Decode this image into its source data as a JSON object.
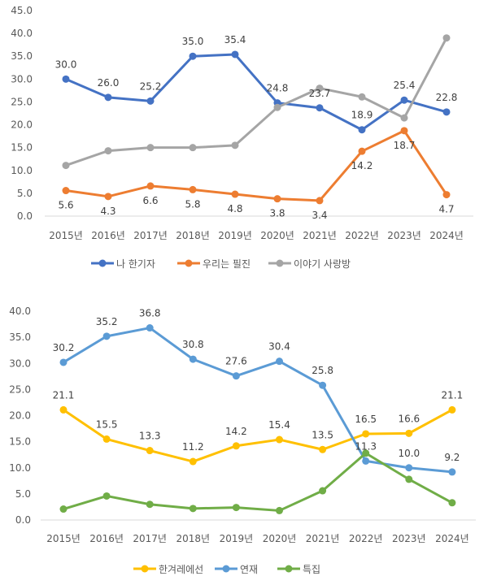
{
  "chart_data": [
    {
      "type": "line",
      "title": "",
      "categories": [
        "2015년",
        "2016년",
        "2017년",
        "2018년",
        "2019년",
        "2020년",
        "2021년",
        "2022년",
        "2023년",
        "2024년"
      ],
      "ylim": [
        0,
        45
      ],
      "yticks": [
        "0.0",
        "5.0",
        "10.0",
        "15.0",
        "20.0",
        "25.0",
        "30.0",
        "35.0",
        "40.0",
        "45.0"
      ],
      "grid": false,
      "legend": "bottom",
      "series": [
        {
          "name": "나 한기자",
          "color": "#4472C4",
          "values": [
            30.0,
            26.0,
            25.2,
            35.0,
            35.4,
            24.8,
            23.7,
            18.9,
            25.4,
            22.8
          ],
          "labels": [
            "30.0",
            "26.0",
            "25.2",
            "35.0",
            "35.4",
            "24.8",
            "23.7",
            "18.9",
            "25.4",
            "22.8"
          ],
          "label_position": "above"
        },
        {
          "name": "우리는 필진",
          "color": "#ED7D31",
          "values": [
            5.6,
            4.3,
            6.6,
            5.8,
            4.8,
            3.8,
            3.4,
            14.2,
            18.7,
            4.7
          ],
          "labels": [
            "5.6",
            "4.3",
            "6.6",
            "5.8",
            "4.8",
            "3.8",
            "3.4",
            "14.2",
            "18.7",
            "4.7"
          ],
          "label_position": "below"
        },
        {
          "name": "이야기 사랑방",
          "color": "#A5A5A5",
          "values": [
            11.1,
            14.3,
            15.0,
            15.0,
            15.5,
            23.8,
            28.0,
            26.1,
            21.5,
            39.0
          ],
          "labels": [],
          "label_position": "none"
        }
      ]
    },
    {
      "type": "line",
      "title": "",
      "categories": [
        "2015년",
        "2016년",
        "2017년",
        "2018년",
        "2019년",
        "2020년",
        "2021년",
        "2022년",
        "2023년",
        "2024년"
      ],
      "ylim": [
        0,
        40
      ],
      "yticks": [
        "0.0",
        "5.0",
        "10.0",
        "15.0",
        "20.0",
        "25.0",
        "30.0",
        "35.0",
        "40.0"
      ],
      "grid": false,
      "legend": "bottom",
      "series": [
        {
          "name": "한겨레에선",
          "color": "#FFC000",
          "values": [
            21.1,
            15.5,
            13.3,
            11.2,
            14.2,
            15.4,
            13.5,
            16.5,
            16.6,
            21.1
          ],
          "labels": [
            "21.1",
            "15.5",
            "13.3",
            "11.2",
            "14.2",
            "15.4",
            "13.5",
            "16.5",
            "16.6",
            "21.1"
          ],
          "label_position": "above"
        },
        {
          "name": "연재",
          "color": "#5B9BD5",
          "values": [
            30.2,
            35.2,
            36.8,
            30.8,
            27.6,
            30.4,
            25.8,
            11.3,
            10.0,
            9.2
          ],
          "labels": [
            "30.2",
            "35.2",
            "36.8",
            "30.8",
            "27.6",
            "30.4",
            "25.8",
            "11.3",
            "10.0",
            "9.2"
          ],
          "label_position": "above"
        },
        {
          "name": "특집",
          "color": "#70AD47",
          "values": [
            2.1,
            4.6,
            3.0,
            2.2,
            2.4,
            1.8,
            5.6,
            12.8,
            7.8,
            3.3
          ],
          "labels": [],
          "label_position": "none"
        }
      ]
    }
  ]
}
